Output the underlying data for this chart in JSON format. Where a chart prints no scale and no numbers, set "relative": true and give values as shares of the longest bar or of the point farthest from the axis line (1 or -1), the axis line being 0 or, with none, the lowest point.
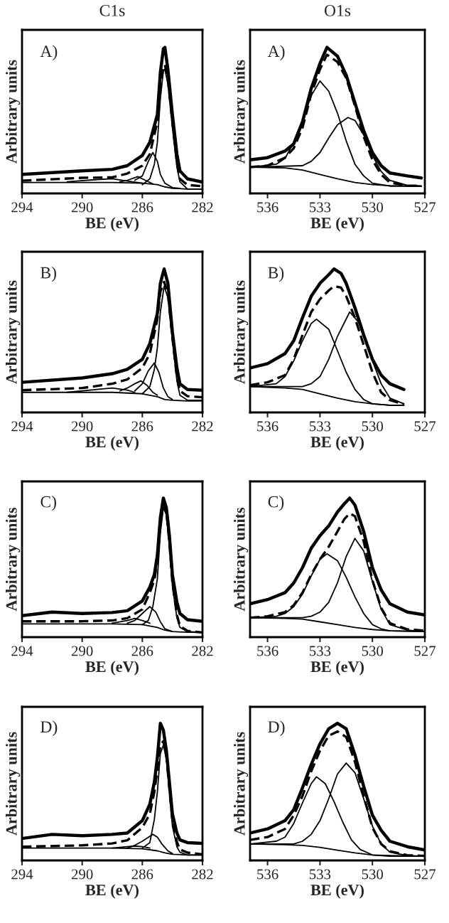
{
  "chart_data": [
    {
      "type": "line",
      "title": "C1s",
      "xlabel": "BE (eV)",
      "ylabel": "Arbitrary units",
      "annotations": [
        "A)"
      ],
      "relative": true,
      "tick_labels": "x",
      "xlim": [
        294,
        282
      ],
      "xticks": [
        294,
        290,
        286,
        282
      ],
      "series": [
        {
          "color": "#000000",
          "line_style": "solid",
          "x": [
            294,
            290,
            288,
            287,
            286,
            285.5,
            285,
            284.8,
            284.6,
            284.5,
            284.3,
            284,
            283.7,
            283.5,
            283,
            282
          ],
          "values": [
            0.13,
            0.155,
            0.165,
            0.19,
            0.26,
            0.35,
            0.54,
            0.83,
            0.99,
            1.0,
            0.85,
            0.54,
            0.27,
            0.155,
            0.1,
            0.078
          ]
        },
        {
          "color": "#000000",
          "line_style": "dashed",
          "x": [
            294,
            290,
            288,
            287,
            286,
            285.5,
            285,
            284.8,
            284.6,
            284.5,
            284.3,
            284,
            283.7,
            283.5,
            283,
            282
          ],
          "values": [
            0.087,
            0.107,
            0.11,
            0.136,
            0.19,
            0.27,
            0.49,
            0.74,
            0.86,
            0.88,
            0.78,
            0.49,
            0.21,
            0.1,
            0.058,
            0.049
          ]
        },
        {
          "color": "#000000",
          "line_style": "solid",
          "x": [
            286,
            285.5,
            285.2,
            285,
            284.8,
            284.6,
            284.5,
            284.3,
            284,
            283.7,
            283.5,
            283,
            282
          ],
          "values": [
            0.06,
            0.1,
            0.2,
            0.35,
            0.65,
            0.84,
            0.85,
            0.75,
            0.45,
            0.18,
            0.08,
            0.03,
            0.03
          ]
        },
        {
          "color": "#000000",
          "line_style": "solid",
          "x": [
            286.5,
            286,
            285.6,
            285.3,
            285,
            284.8,
            284.5,
            284,
            283.5
          ],
          "values": [
            0.09,
            0.12,
            0.22,
            0.28,
            0.22,
            0.13,
            0.07,
            0.04,
            0.035
          ]
        },
        {
          "color": "#000000",
          "line_style": "solid",
          "x": [
            287.5,
            287,
            286.3,
            285.8,
            285.3
          ],
          "values": [
            0.08,
            0.09,
            0.115,
            0.09,
            0.065
          ]
        },
        {
          "color": "#000000",
          "line_style": "solid",
          "x": [
            291,
            289,
            288,
            287,
            286
          ],
          "values": [
            0.08,
            0.095,
            0.1,
            0.085,
            0.07
          ]
        },
        {
          "color": "#000000",
          "line_style": "solid",
          "x": [
            294,
            288,
            286,
            285,
            284.5,
            284,
            283,
            282
          ],
          "values": [
            0.075,
            0.075,
            0.07,
            0.06,
            0.045,
            0.035,
            0.03,
            0.03
          ]
        }
      ]
    },
    {
      "type": "line",
      "title": "O1s",
      "xlabel": "BE (eV)",
      "ylabel": "Arbitrary units",
      "annotations": [
        "A)"
      ],
      "relative": true,
      "tick_labels": "x",
      "xlim": [
        537,
        527
      ],
      "xticks": [
        536,
        533,
        530,
        527
      ],
      "series": [
        {
          "color": "#000000",
          "line_style": "solid",
          "x": [
            537,
            536,
            535,
            534.5,
            534,
            533.5,
            533,
            532.6,
            532,
            531.5,
            531,
            530.5,
            530,
            529.5,
            529,
            528,
            527.2
          ],
          "values": [
            0.23,
            0.245,
            0.29,
            0.34,
            0.49,
            0.72,
            0.89,
            1.0,
            0.94,
            0.81,
            0.62,
            0.43,
            0.28,
            0.19,
            0.14,
            0.12,
            0.106
          ]
        },
        {
          "color": "#000000",
          "line_style": "dashed",
          "x": [
            537,
            536,
            535,
            534.5,
            534,
            533.5,
            533,
            532.6,
            532,
            531.5,
            531,
            530.5,
            530,
            529.5,
            529,
            528,
            527.2
          ],
          "values": [
            0.18,
            0.19,
            0.245,
            0.31,
            0.45,
            0.68,
            0.85,
            0.95,
            0.9,
            0.79,
            0.6,
            0.39,
            0.23,
            0.13,
            0.074,
            0.053,
            0.053
          ]
        },
        {
          "color": "#000000",
          "line_style": "solid",
          "x": [
            537,
            535.5,
            535,
            534.5,
            534,
            533.5,
            533,
            532.5,
            532,
            531.5,
            531,
            530.5,
            530,
            529,
            527.2
          ],
          "values": [
            0.18,
            0.2,
            0.24,
            0.35,
            0.5,
            0.67,
            0.77,
            0.7,
            0.55,
            0.36,
            0.2,
            0.12,
            0.07,
            0.05,
            0.05
          ]
        },
        {
          "color": "#000000",
          "line_style": "solid",
          "x": [
            537,
            534,
            533.5,
            533,
            532.5,
            532,
            531.4,
            531,
            530.5,
            530,
            529.5,
            529,
            528,
            527.2
          ],
          "values": [
            0.18,
            0.19,
            0.22,
            0.28,
            0.38,
            0.47,
            0.52,
            0.5,
            0.4,
            0.26,
            0.15,
            0.09,
            0.055,
            0.05
          ]
        },
        {
          "color": "#000000",
          "line_style": "solid",
          "x": [
            537,
            535,
            534,
            533,
            532,
            531,
            530,
            529,
            527.2
          ],
          "values": [
            0.18,
            0.175,
            0.16,
            0.13,
            0.1,
            0.075,
            0.06,
            0.053,
            0.05
          ]
        }
      ]
    },
    {
      "type": "line",
      "xlabel": "BE (eV)",
      "ylabel": "Arbitrary units",
      "annotations": [
        "B)"
      ],
      "relative": true,
      "tick_labels": "x",
      "xlim": [
        294,
        282
      ],
      "xticks": [
        294,
        290,
        286,
        282
      ],
      "series": [
        {
          "color": "#000000",
          "line_style": "solid",
          "x": [
            294,
            290,
            288,
            287,
            286,
            285.5,
            285,
            284.8,
            284.55,
            284.3,
            284,
            283.7,
            283.5,
            283,
            282
          ],
          "values": [
            0.21,
            0.24,
            0.27,
            0.3,
            0.37,
            0.48,
            0.69,
            0.9,
            1.0,
            0.9,
            0.56,
            0.31,
            0.2,
            0.16,
            0.155
          ]
        },
        {
          "color": "#000000",
          "line_style": "dashed",
          "x": [
            294,
            290,
            288,
            287,
            286,
            285.5,
            285,
            284.8,
            284.55,
            284.3,
            284,
            283.7,
            283.5,
            283,
            282
          ],
          "values": [
            0.155,
            0.17,
            0.2,
            0.23,
            0.31,
            0.41,
            0.65,
            0.84,
            0.91,
            0.83,
            0.52,
            0.245,
            0.15,
            0.113,
            0.106
          ]
        },
        {
          "color": "#000000",
          "line_style": "solid",
          "x": [
            286,
            285.5,
            285.2,
            285,
            284.8,
            284.55,
            284.3,
            284,
            283.7,
            283.5,
            283,
            282
          ],
          "values": [
            0.13,
            0.18,
            0.3,
            0.45,
            0.7,
            0.88,
            0.8,
            0.5,
            0.22,
            0.12,
            0.085,
            0.085
          ]
        },
        {
          "color": "#000000",
          "line_style": "solid",
          "x": [
            286.5,
            286,
            285.6,
            285.2,
            284.9,
            284.6,
            284.3,
            284
          ],
          "values": [
            0.15,
            0.2,
            0.29,
            0.345,
            0.28,
            0.17,
            0.11,
            0.09
          ]
        },
        {
          "color": "#000000",
          "line_style": "solid",
          "x": [
            287.5,
            287,
            286.5,
            286.1,
            285.7,
            285.3,
            285
          ],
          "values": [
            0.15,
            0.17,
            0.2,
            0.22,
            0.19,
            0.14,
            0.12
          ]
        },
        {
          "color": "#000000",
          "line_style": "solid",
          "x": [
            291,
            289,
            288,
            287,
            286.5
          ],
          "values": [
            0.14,
            0.16,
            0.17,
            0.155,
            0.14
          ]
        },
        {
          "color": "#000000",
          "line_style": "solid",
          "x": [
            294,
            288,
            286,
            285,
            284.5,
            284,
            283,
            282
          ],
          "values": [
            0.14,
            0.14,
            0.13,
            0.11,
            0.09,
            0.085,
            0.08,
            0.08
          ]
        }
      ]
    },
    {
      "type": "line",
      "xlabel": "BE (eV)",
      "ylabel": "Arbitrary units",
      "annotations": [
        "B)"
      ],
      "relative": true,
      "tick_labels": "x",
      "xlim": [
        537,
        527
      ],
      "xticks": [
        536,
        533,
        530,
        527
      ],
      "series": [
        {
          "color": "#000000",
          "line_style": "solid",
          "x": [
            537,
            536,
            535,
            534.5,
            534,
            533.5,
            533,
            532.5,
            532.2,
            531.8,
            531.5,
            531,
            530.5,
            530,
            529.5,
            529,
            528.2
          ],
          "values": [
            0.31,
            0.34,
            0.41,
            0.5,
            0.66,
            0.81,
            0.9,
            0.96,
            1.0,
            0.97,
            0.9,
            0.73,
            0.54,
            0.37,
            0.26,
            0.2,
            0.16
          ]
        },
        {
          "color": "#000000",
          "line_style": "dashed",
          "x": [
            537,
            536,
            535,
            534.5,
            534,
            533.5,
            533,
            532.5,
            532.2,
            531.8,
            531.5,
            531,
            530.5,
            530,
            529.5,
            529,
            528.2
          ],
          "values": [
            0.19,
            0.21,
            0.26,
            0.37,
            0.54,
            0.7,
            0.79,
            0.85,
            0.88,
            0.87,
            0.81,
            0.66,
            0.47,
            0.28,
            0.14,
            0.086,
            0.057
          ]
        },
        {
          "color": "#000000",
          "line_style": "solid",
          "x": [
            537,
            535.5,
            535,
            534.5,
            534,
            533.5,
            533.2,
            532.5,
            532,
            531.5,
            531,
            530.5,
            530,
            529,
            528.2
          ],
          "values": [
            0.18,
            0.2,
            0.25,
            0.36,
            0.5,
            0.62,
            0.65,
            0.58,
            0.43,
            0.28,
            0.16,
            0.09,
            0.06,
            0.05,
            0.05
          ]
        },
        {
          "color": "#000000",
          "line_style": "solid",
          "x": [
            537,
            534,
            533.5,
            533,
            532.5,
            532,
            531.3,
            530.8,
            530.3,
            530,
            529.5,
            529,
            528.2
          ],
          "values": [
            0.18,
            0.18,
            0.2,
            0.25,
            0.37,
            0.53,
            0.7,
            0.63,
            0.47,
            0.36,
            0.2,
            0.1,
            0.06
          ]
        },
        {
          "color": "#000000",
          "line_style": "solid",
          "x": [
            537,
            535,
            534,
            533,
            532,
            531,
            530,
            529,
            528.2
          ],
          "values": [
            0.18,
            0.17,
            0.16,
            0.13,
            0.1,
            0.075,
            0.06,
            0.05,
            0.05
          ]
        }
      ]
    },
    {
      "type": "line",
      "xlabel": "BE (eV)",
      "ylabel": "Arbitrary units",
      "annotations": [
        "C)"
      ],
      "relative": true,
      "tick_labels": "x",
      "xlim": [
        294,
        282
      ],
      "xticks": [
        294,
        290,
        286,
        282
      ],
      "series": [
        {
          "color": "#000000",
          "line_style": "solid",
          "x": [
            294,
            292,
            290,
            288,
            287,
            286,
            285.5,
            285.2,
            285,
            284.8,
            284.6,
            284.4,
            284.2,
            284,
            283.7,
            283.5,
            283,
            282
          ],
          "values": [
            0.155,
            0.18,
            0.17,
            0.177,
            0.19,
            0.26,
            0.36,
            0.45,
            0.59,
            0.86,
            1.0,
            0.93,
            0.73,
            0.45,
            0.25,
            0.17,
            0.125,
            0.114
          ]
        },
        {
          "color": "#000000",
          "line_style": "dashed",
          "x": [
            294,
            290,
            288,
            287,
            286,
            285.5,
            285.2,
            285,
            284.8,
            284.6,
            284.4,
            284.2,
            284,
            283.7,
            283.5,
            283,
            282
          ],
          "values": [
            0.114,
            0.114,
            0.12,
            0.136,
            0.2,
            0.32,
            0.41,
            0.55,
            0.82,
            0.95,
            0.9,
            0.68,
            0.39,
            0.16,
            0.08,
            0.045,
            0.034
          ]
        },
        {
          "color": "#000000",
          "line_style": "solid",
          "x": [
            286,
            285.6,
            285.3,
            285,
            284.8,
            284.6,
            284.4,
            284.2,
            284,
            283.7,
            283.5,
            283,
            282
          ],
          "values": [
            0.09,
            0.12,
            0.22,
            0.42,
            0.75,
            0.93,
            0.88,
            0.66,
            0.37,
            0.14,
            0.07,
            0.04,
            0.034
          ]
        },
        {
          "color": "#000000",
          "line_style": "solid",
          "x": [
            287,
            286.5,
            286,
            285.5,
            285.1,
            284.8,
            284.5,
            284
          ],
          "values": [
            0.1,
            0.12,
            0.17,
            0.22,
            0.18,
            0.11,
            0.06,
            0.04
          ]
        },
        {
          "color": "#000000",
          "line_style": "solid",
          "x": [
            288,
            287,
            286.5,
            286,
            285.5
          ],
          "values": [
            0.1,
            0.12,
            0.135,
            0.12,
            0.1
          ]
        },
        {
          "color": "#000000",
          "line_style": "solid",
          "x": [
            294,
            288,
            286,
            285,
            284.5,
            284,
            283,
            282
          ],
          "values": [
            0.095,
            0.095,
            0.09,
            0.07,
            0.05,
            0.04,
            0.035,
            0.034
          ]
        }
      ]
    },
    {
      "type": "line",
      "xlabel": "BE (eV)",
      "ylabel": "Arbitrary units",
      "annotations": [
        "C)"
      ],
      "relative": true,
      "tick_labels": "x",
      "xlim": [
        537,
        527
      ],
      "xticks": [
        536,
        533,
        530,
        527
      ],
      "series": [
        {
          "color": "#000000",
          "line_style": "solid",
          "x": [
            537,
            536,
            535,
            534.5,
            534,
            533.5,
            533,
            532.5,
            532,
            531.6,
            531.3,
            531,
            530.5,
            530,
            529.5,
            529,
            528,
            527
          ],
          "values": [
            0.24,
            0.27,
            0.32,
            0.39,
            0.5,
            0.64,
            0.73,
            0.8,
            0.9,
            0.96,
            1.0,
            0.95,
            0.76,
            0.5,
            0.34,
            0.24,
            0.18,
            0.16
          ]
        },
        {
          "color": "#000000",
          "line_style": "dashed",
          "x": [
            537,
            536,
            535,
            534.5,
            534,
            533.5,
            533,
            532.5,
            532,
            531.6,
            531.3,
            531,
            530.5,
            530,
            529.5,
            529,
            528,
            527
          ],
          "values": [
            0.14,
            0.15,
            0.18,
            0.23,
            0.32,
            0.45,
            0.56,
            0.65,
            0.76,
            0.85,
            0.89,
            0.87,
            0.69,
            0.41,
            0.21,
            0.1,
            0.056,
            0.047
          ]
        },
        {
          "color": "#000000",
          "line_style": "solid",
          "x": [
            537,
            535.5,
            535,
            534.5,
            534,
            533.5,
            533,
            532.6,
            532,
            531.5,
            531,
            530.5,
            530,
            529.5,
            529,
            527
          ],
          "values": [
            0.14,
            0.15,
            0.17,
            0.22,
            0.31,
            0.44,
            0.56,
            0.6,
            0.55,
            0.43,
            0.29,
            0.17,
            0.09,
            0.06,
            0.045,
            0.04
          ]
        },
        {
          "color": "#000000",
          "line_style": "solid",
          "x": [
            537,
            534,
            533.5,
            533,
            532.5,
            532,
            531.5,
            531,
            530.5,
            530,
            529.5,
            529,
            528,
            527
          ],
          "values": [
            0.14,
            0.14,
            0.15,
            0.18,
            0.25,
            0.39,
            0.58,
            0.71,
            0.62,
            0.4,
            0.2,
            0.09,
            0.05,
            0.04
          ]
        },
        {
          "color": "#000000",
          "line_style": "solid",
          "x": [
            537,
            535,
            534,
            533,
            532,
            531,
            530,
            529,
            527
          ],
          "values": [
            0.14,
            0.135,
            0.13,
            0.11,
            0.09,
            0.07,
            0.055,
            0.045,
            0.04
          ]
        }
      ]
    },
    {
      "type": "line",
      "xlabel": "BE (eV)",
      "ylabel": "Arbitrary units",
      "annotations": [
        "D)"
      ],
      "relative": true,
      "tick_labels": "x",
      "xlim": [
        294,
        282
      ],
      "xticks": [
        294,
        290,
        286,
        282
      ],
      "series": [
        {
          "color": "#000000",
          "line_style": "solid",
          "x": [
            294,
            292,
            290,
            288,
            287,
            286,
            285.5,
            285.2,
            285,
            284.8,
            284.6,
            284.4,
            284.2,
            284,
            283.7,
            283.5,
            283,
            282
          ],
          "values": [
            0.16,
            0.19,
            0.18,
            0.19,
            0.2,
            0.29,
            0.41,
            0.57,
            0.75,
            1.0,
            0.95,
            0.8,
            0.57,
            0.34,
            0.2,
            0.15,
            0.13,
            0.124
          ]
        },
        {
          "color": "#000000",
          "line_style": "dashed",
          "x": [
            294,
            290,
            288,
            287,
            286,
            285.5,
            285.2,
            285,
            284.8,
            284.6,
            284.4,
            284.2,
            284,
            283.7,
            283.5,
            283,
            282
          ],
          "values": [
            0.1,
            0.11,
            0.124,
            0.147,
            0.24,
            0.34,
            0.5,
            0.66,
            0.84,
            0.87,
            0.76,
            0.52,
            0.29,
            0.136,
            0.08,
            0.057,
            0.045
          ]
        },
        {
          "color": "#000000",
          "line_style": "solid",
          "x": [
            286,
            285.5,
            285.2,
            285,
            284.8,
            284.6,
            284.4,
            284.2,
            284,
            283.7,
            283.5,
            283,
            282
          ],
          "values": [
            0.09,
            0.13,
            0.3,
            0.5,
            0.78,
            0.84,
            0.74,
            0.5,
            0.25,
            0.1,
            0.06,
            0.04,
            0.04
          ]
        },
        {
          "color": "#000000",
          "line_style": "solid",
          "x": [
            287,
            286.5,
            286,
            285.3,
            285,
            284.7,
            284.3,
            284
          ],
          "values": [
            0.09,
            0.11,
            0.14,
            0.19,
            0.17,
            0.12,
            0.07,
            0.05
          ]
        },
        {
          "color": "#000000",
          "line_style": "solid",
          "x": [
            288,
            287,
            286.5,
            286,
            285.5
          ],
          "values": [
            0.09,
            0.1,
            0.105,
            0.1,
            0.09
          ]
        },
        {
          "color": "#000000",
          "line_style": "solid",
          "x": [
            294,
            288,
            286,
            285,
            284.5,
            284,
            283,
            282
          ],
          "values": [
            0.09,
            0.09,
            0.085,
            0.07,
            0.055,
            0.045,
            0.04,
            0.04
          ]
        }
      ]
    },
    {
      "type": "line",
      "xlabel": "BE (eV)",
      "ylabel": "Arbitrary units",
      "annotations": [
        "D)"
      ],
      "relative": true,
      "tick_labels": "x",
      "xlim": [
        537,
        527
      ],
      "xticks": [
        536,
        533,
        530,
        527
      ],
      "series": [
        {
          "color": "#000000",
          "line_style": "solid",
          "x": [
            537,
            536,
            535,
            534.5,
            534,
            533.5,
            533,
            532.5,
            532,
            531.5,
            531,
            530.5,
            530,
            529.5,
            529,
            528,
            527
          ],
          "values": [
            0.2,
            0.23,
            0.29,
            0.37,
            0.53,
            0.7,
            0.85,
            0.96,
            1.0,
            0.96,
            0.77,
            0.54,
            0.33,
            0.22,
            0.14,
            0.1,
            0.076
          ]
        },
        {
          "color": "#000000",
          "line_style": "dashed",
          "x": [
            537,
            536,
            535,
            534.5,
            534,
            533.5,
            533,
            532.5,
            532,
            531.5,
            531,
            530.5,
            530,
            529.5,
            529,
            528,
            527
          ],
          "values": [
            0.15,
            0.17,
            0.23,
            0.33,
            0.47,
            0.65,
            0.8,
            0.91,
            0.94,
            0.9,
            0.72,
            0.47,
            0.24,
            0.12,
            0.067,
            0.038,
            0.033
          ]
        },
        {
          "color": "#000000",
          "line_style": "solid",
          "x": [
            537,
            535.5,
            535,
            534.5,
            534,
            533.5,
            533.2,
            532.7,
            532.2,
            531.7,
            531.2,
            530.7,
            530,
            529,
            527
          ],
          "values": [
            0.12,
            0.14,
            0.17,
            0.27,
            0.42,
            0.56,
            0.61,
            0.56,
            0.43,
            0.28,
            0.15,
            0.08,
            0.04,
            0.03,
            0.03
          ]
        },
        {
          "color": "#000000",
          "line_style": "solid",
          "x": [
            537,
            534.5,
            534,
            533.5,
            533,
            532.5,
            532,
            531.5,
            531,
            530.5,
            530,
            529.5,
            529,
            528,
            527
          ],
          "values": [
            0.12,
            0.12,
            0.14,
            0.19,
            0.29,
            0.45,
            0.63,
            0.71,
            0.64,
            0.45,
            0.25,
            0.12,
            0.06,
            0.035,
            0.03
          ]
        },
        {
          "color": "#000000",
          "line_style": "solid",
          "x": [
            537,
            535,
            534,
            533,
            532,
            531,
            530,
            529,
            527
          ],
          "values": [
            0.12,
            0.115,
            0.11,
            0.095,
            0.075,
            0.055,
            0.04,
            0.035,
            0.03
          ]
        }
      ]
    }
  ]
}
